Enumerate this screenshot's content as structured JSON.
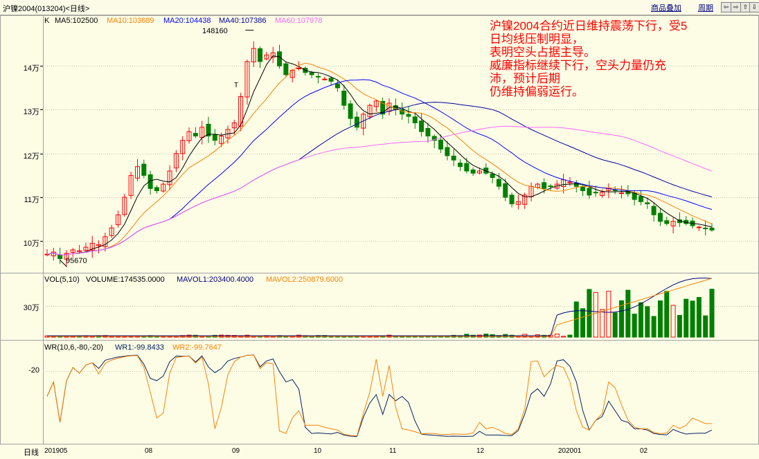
{
  "window": {
    "title": "沪镍2004(013204)<日线>"
  },
  "toolbar": {
    "overlay_label": "商品叠加",
    "period_label": "周期",
    "arrows": [
      "⇦",
      "⇨",
      "⇧",
      "⇩"
    ]
  },
  "main_panel": {
    "k_label": "K",
    "ma5": "MA5:102500",
    "ma10": "MA10:103689",
    "ma20": "MA20:104438",
    "ma40": "MA40:107386",
    "ma60": "MA60:107978",
    "high_label": "148160",
    "low_label": "95670",
    "t_mark": "T",
    "y_ticks": [
      "14万",
      "13万",
      "12万",
      "11万",
      "10万"
    ],
    "annotation": "沪镍2004合约近日维持震荡下行，受5\n日均线压制明显，\n表明空头占据主导。\n威廉指标继续下行，空头力量仍充\n沛，预计后期\n仍维持偏弱运行。"
  },
  "vol_panel": {
    "title": "VOL(5,10)",
    "volume": "VOLUME:174535.0000",
    "mavol1": "MAVOL1:203400.4000",
    "mavol2": "MAVOL2:250879.6000",
    "y_tick": "30万"
  },
  "wr_panel": {
    "title": "WR(10,6,-80,-20)",
    "wr1": "WR1:-99.8433",
    "wr2": "WR2:-99.7647",
    "y_tick": "-20"
  },
  "x_axis": {
    "period_label": "日线",
    "ticks": [
      "201905",
      "08",
      "09",
      "10",
      "11",
      "12",
      "202001",
      "02"
    ]
  },
  "colors": {
    "up": "#ff0000",
    "down": "#008000",
    "ma5": "#000000",
    "ma10": "#ff8000",
    "ma20": "#0000ff",
    "ma40": "#0000a0",
    "ma60": "#ff66ff",
    "wr1": "#002060",
    "wr2": "#ff8000",
    "annotation": "#ff0000"
  },
  "chart_data": {
    "type": "candlestick",
    "title": "沪镍2004(013204)<日线>",
    "y_range_price": [
      94500,
      150000
    ],
    "price_ticks": [
      140000,
      130000,
      120000,
      110000,
      100000
    ],
    "x_months": [
      "201905",
      "08",
      "09",
      "10",
      "11",
      "12",
      "202001",
      "02"
    ],
    "closes": [
      97000,
      97500,
      96000,
      97200,
      98000,
      97800,
      98600,
      99500,
      99200,
      101000,
      103000,
      106000,
      110000,
      115000,
      117000,
      115000,
      112000,
      111500,
      113000,
      116000,
      120000,
      123000,
      125000,
      124000,
      126000,
      124000,
      123000,
      124000,
      125500,
      127000,
      133000,
      141000,
      144000,
      141000,
      142500,
      143000,
      140000,
      138000,
      139000,
      139500,
      138500,
      138000,
      137500,
      137000,
      136500,
      135000,
      131000,
      128000,
      126000,
      129000,
      131000,
      132000,
      129000,
      131500,
      130000,
      129000,
      128500,
      127000,
      125000,
      124000,
      123000,
      121000,
      119500,
      118500,
      117000,
      116000,
      115500,
      116000,
      115500,
      114500,
      112500,
      110000,
      108500,
      109000,
      110500,
      112500,
      113000,
      112000,
      112500,
      113000,
      114000,
      113500,
      112500,
      111500,
      110500,
      111000,
      111200,
      112000,
      111500,
      111000,
      110800,
      109500,
      109000,
      108500,
      106000,
      104500,
      104000,
      104500,
      104200,
      104000,
      103500,
      103200,
      102800,
      102500
    ],
    "series": [
      {
        "name": "MA5",
        "last": 102500
      },
      {
        "name": "MA10",
        "last": 103689
      },
      {
        "name": "MA20",
        "last": 104438
      },
      {
        "name": "MA40",
        "last": 107386
      },
      {
        "name": "MA60",
        "last": 107978
      }
    ],
    "annotations": {
      "high": 148160,
      "low": 95670
    },
    "volume": {
      "last": 174535,
      "mavol1": 203400.4,
      "mavol2": 250879.6
    },
    "wr": {
      "wr1": -99.8433,
      "wr2": -99.7647
    }
  }
}
